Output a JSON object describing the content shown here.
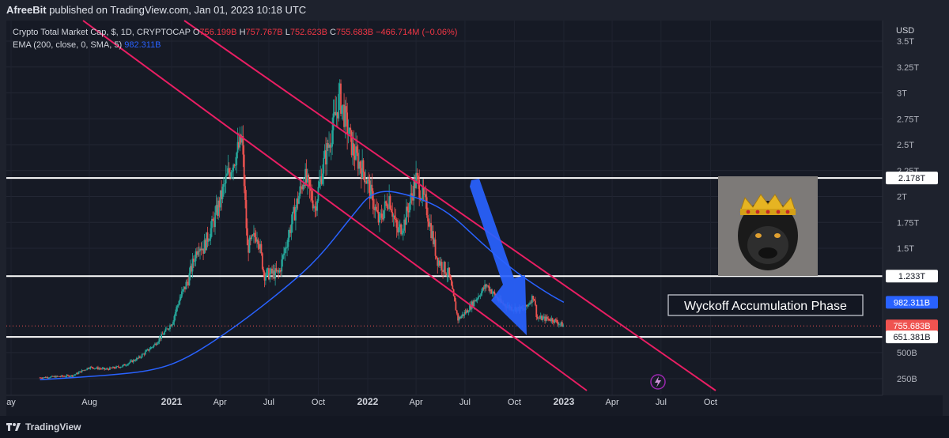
{
  "header": {
    "publisher": "AfreeBit",
    "published_text": "published on TradingView.com, Jan 01, 2023 10:18 UTC"
  },
  "legend": {
    "symbol": "Crypto Total Market Cap, $, 1D, CRYPTOCAP",
    "o_label": "O",
    "o_value": "756.199B",
    "h_label": "H",
    "h_value": "757.767B",
    "l_label": "L",
    "l_value": "752.623B",
    "c_label": "C",
    "c_value": "755.683B",
    "change": "−466.714M (−0.06%)",
    "ema_label": "EMA (200, close, 0, SMA, 5)",
    "ema_value": "982.311B"
  },
  "colors": {
    "up": "#26a69a",
    "down": "#ef5350",
    "ema": "#2962ff",
    "channel": "#e91e63",
    "arrow": "#2962ff",
    "level": "#ffffff",
    "background": "#161a25"
  },
  "annotation": {
    "text": "Wyckoff Accumulation Phase"
  },
  "image_note": "gorilla-with-crown",
  "footer": {
    "brand": "TradingView"
  },
  "chart_data": {
    "type": "candlestick",
    "y_axis_unit": "USD",
    "y_ticks": [
      "3.5T",
      "3.25T",
      "3T",
      "2.75T",
      "2.5T",
      "2.25T",
      "2T",
      "1.75T",
      "1.5T",
      "500B",
      "250B"
    ],
    "x_ticks": [
      "ay",
      "Aug",
      "2021",
      "Apr",
      "Jul",
      "Oct",
      "2022",
      "Apr",
      "Jul",
      "Oct",
      "2023",
      "Apr",
      "Jul",
      "Oct"
    ],
    "price_labels": [
      {
        "label": "2.178T",
        "kind": "level"
      },
      {
        "label": "1.233T",
        "kind": "level"
      },
      {
        "label": "982.311B",
        "kind": "ema"
      },
      {
        "label": "755.683B",
        "kind": "last"
      },
      {
        "label": "651.381B",
        "kind": "level"
      }
    ],
    "horizontal_levels": [
      2.178,
      1.233,
      0.651
    ],
    "last_price": 0.7557,
    "price_path": [
      [
        "2020-05-01",
        0.26
      ],
      [
        "2020-06-01",
        0.27
      ],
      [
        "2020-07-01",
        0.28
      ],
      [
        "2020-08-01",
        0.36
      ],
      [
        "2020-09-01",
        0.34
      ],
      [
        "2020-10-01",
        0.37
      ],
      [
        "2020-11-01",
        0.45
      ],
      [
        "2020-12-01",
        0.58
      ],
      [
        "2021-01-01",
        0.78
      ],
      [
        "2021-01-15",
        1.0
      ],
      [
        "2021-02-01",
        1.2
      ],
      [
        "2021-02-20",
        1.55
      ],
      [
        "2021-03-01",
        1.5
      ],
      [
        "2021-03-20",
        1.75
      ],
      [
        "2021-04-15",
        2.2
      ],
      [
        "2021-05-12",
        2.55
      ],
      [
        "2021-05-22",
        1.5
      ],
      [
        "2021-06-10",
        1.65
      ],
      [
        "2021-06-22",
        1.25
      ],
      [
        "2021-07-20",
        1.26
      ],
      [
        "2021-08-10",
        1.7
      ],
      [
        "2021-09-05",
        2.2
      ],
      [
        "2021-09-25",
        1.9
      ],
      [
        "2021-10-10",
        2.3
      ],
      [
        "2021-10-25",
        2.6
      ],
      [
        "2021-11-10",
        2.96
      ],
      [
        "2021-12-04",
        2.45
      ],
      [
        "2021-12-28",
        2.2
      ],
      [
        "2022-01-22",
        1.75
      ],
      [
        "2022-02-10",
        2.0
      ],
      [
        "2022-02-25",
        1.65
      ],
      [
        "2022-03-10",
        1.75
      ],
      [
        "2022-04-01",
        2.17
      ],
      [
        "2022-04-20",
        1.9
      ],
      [
        "2022-05-10",
        1.4
      ],
      [
        "2022-06-01",
        1.25
      ],
      [
        "2022-06-18",
        0.82
      ],
      [
        "2022-07-05",
        0.9
      ],
      [
        "2022-08-10",
        1.15
      ],
      [
        "2022-09-05",
        0.98
      ],
      [
        "2022-09-25",
        0.93
      ],
      [
        "2022-10-20",
        0.91
      ],
      [
        "2022-11-06",
        1.05
      ],
      [
        "2022-11-12",
        0.83
      ],
      [
        "2022-12-10",
        0.82
      ],
      [
        "2023-01-01",
        0.7557
      ]
    ],
    "ema_path": [
      [
        "2020-05-01",
        0.24
      ],
      [
        "2020-09-01",
        0.28
      ],
      [
        "2020-12-01",
        0.33
      ],
      [
        "2021-02-01",
        0.45
      ],
      [
        "2021-05-01",
        0.75
      ],
      [
        "2021-08-01",
        1.12
      ],
      [
        "2021-10-01",
        1.4
      ],
      [
        "2021-12-01",
        1.8
      ],
      [
        "2022-01-15",
        2.08
      ],
      [
        "2022-04-01",
        2.0
      ],
      [
        "2022-06-01",
        1.85
      ],
      [
        "2022-08-01",
        1.55
      ],
      [
        "2022-10-01",
        1.28
      ],
      [
        "2022-12-01",
        1.07
      ],
      [
        "2023-01-01",
        0.982
      ]
    ]
  }
}
